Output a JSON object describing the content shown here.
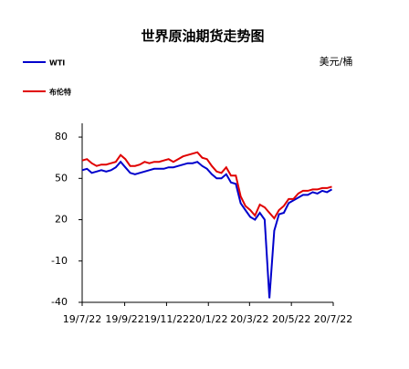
{
  "chart_data": {
    "type": "line",
    "title": "世界原油期货走势图",
    "y_unit": "美元/桶",
    "x": [
      "2019-07-22",
      "2019-07-29",
      "2019-08-05",
      "2019-08-12",
      "2019-08-19",
      "2019-08-26",
      "2019-09-02",
      "2019-09-09",
      "2019-09-16",
      "2019-09-23",
      "2019-09-30",
      "2019-10-07",
      "2019-10-14",
      "2019-10-21",
      "2019-10-28",
      "2019-11-04",
      "2019-11-11",
      "2019-11-18",
      "2019-11-25",
      "2019-12-02",
      "2019-12-09",
      "2019-12-16",
      "2019-12-23",
      "2019-12-30",
      "2020-01-06",
      "2020-01-13",
      "2020-01-20",
      "2020-01-27",
      "2020-02-03",
      "2020-02-10",
      "2020-02-17",
      "2020-02-24",
      "2020-03-02",
      "2020-03-09",
      "2020-03-16",
      "2020-03-23",
      "2020-03-30",
      "2020-04-06",
      "2020-04-13",
      "2020-04-20",
      "2020-04-27",
      "2020-05-04",
      "2020-05-11",
      "2020-05-18",
      "2020-05-25",
      "2020-06-01",
      "2020-06-08",
      "2020-06-15",
      "2020-06-22",
      "2020-06-29",
      "2020-07-06",
      "2020-07-13",
      "2020-07-20"
    ],
    "series": [
      {
        "name": "WTI",
        "color": "#0000cc",
        "values": [
          56,
          57,
          54,
          55,
          56,
          55,
          56,
          58,
          62,
          58,
          54,
          53,
          54,
          55,
          56,
          57,
          57,
          57,
          58,
          58,
          59,
          60,
          61,
          61,
          62,
          59,
          57,
          53,
          50,
          50,
          53,
          47,
          46,
          32,
          27,
          22,
          20,
          25,
          20,
          -37,
          12,
          24,
          25,
          32,
          34,
          36,
          38,
          38,
          40,
          39,
          41,
          40,
          42
        ]
      },
      {
        "name": "布伦特",
        "color": "#e00000",
        "values": [
          63,
          64,
          61,
          59,
          60,
          60,
          61,
          62,
          67,
          64,
          59,
          59,
          60,
          62,
          61,
          62,
          62,
          63,
          64,
          62,
          64,
          66,
          67,
          68,
          69,
          65,
          64,
          59,
          55,
          54,
          58,
          52,
          52,
          37,
          30,
          27,
          23,
          31,
          29,
          25,
          21,
          27,
          30,
          35,
          35,
          39,
          41,
          41,
          42,
          42,
          43,
          43,
          44
        ]
      }
    ],
    "xlim": [
      "2019-07-22",
      "2020-07-22"
    ],
    "xticks": [
      {
        "value": "2019-07-22",
        "label": "19/7/22"
      },
      {
        "value": "2019-09-22",
        "label": "19/9/22"
      },
      {
        "value": "2019-11-22",
        "label": "19/11/22"
      },
      {
        "value": "2020-01-22",
        "label": "20/1/22"
      },
      {
        "value": "2020-03-22",
        "label": "20/3/22"
      },
      {
        "value": "2020-05-22",
        "label": "20/5/22"
      },
      {
        "value": "2020-07-22",
        "label": "20/7/22"
      }
    ],
    "ylim": [
      -40,
      90
    ],
    "yticks": [
      -40,
      -10,
      20,
      50,
      80
    ]
  }
}
